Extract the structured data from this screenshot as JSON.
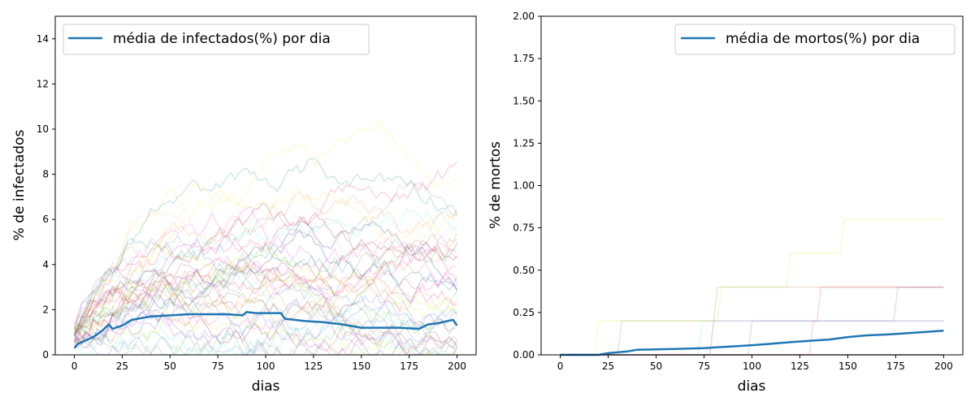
{
  "chart_data": [
    {
      "type": "line",
      "xlabel": "dias",
      "ylabel": "% de infectados",
      "xlim": [
        -10,
        210
      ],
      "ylim": [
        0,
        15
      ],
      "xticks": [
        0,
        25,
        50,
        75,
        100,
        125,
        150,
        175,
        200
      ],
      "xtick_labels": [
        "0",
        "25",
        "50",
        "75",
        "100",
        "125",
        "150",
        "175",
        "200"
      ],
      "yticks": [
        0,
        2,
        4,
        6,
        8,
        10,
        12,
        14
      ],
      "ytick_labels": [
        "0",
        "2",
        "4",
        "6",
        "8",
        "10",
        "12",
        "14"
      ],
      "grid": false,
      "legend_position": "top-left",
      "series": [
        {
          "name": "média de infectados(%) por dia",
          "color": "#1f77b4",
          "x": [
            0,
            2,
            5,
            10,
            15,
            18,
            20,
            25,
            30,
            40,
            50,
            60,
            70,
            80,
            88,
            90,
            95,
            100,
            108,
            110,
            120,
            130,
            140,
            150,
            160,
            170,
            180,
            185,
            190,
            195,
            198,
            200
          ],
          "y": [
            0.3,
            0.5,
            0.6,
            0.8,
            1.1,
            1.35,
            1.15,
            1.3,
            1.55,
            1.7,
            1.75,
            1.8,
            1.8,
            1.8,
            1.75,
            1.9,
            1.85,
            1.85,
            1.85,
            1.6,
            1.5,
            1.45,
            1.35,
            1.2,
            1.2,
            1.2,
            1.15,
            1.35,
            1.4,
            1.5,
            1.55,
            1.3
          ]
        }
      ]
    },
    {
      "type": "line",
      "xlabel": "dias",
      "ylabel": "% de mortos",
      "xlim": [
        -10,
        210
      ],
      "ylim": [
        0,
        2.0
      ],
      "xticks": [
        0,
        25,
        50,
        75,
        100,
        125,
        150,
        175,
        200
      ],
      "xtick_labels": [
        "0",
        "25",
        "50",
        "75",
        "100",
        "125",
        "150",
        "175",
        "200"
      ],
      "yticks": [
        0,
        0.25,
        0.5,
        0.75,
        1.0,
        1.25,
        1.5,
        1.75,
        2.0
      ],
      "ytick_labels": [
        "0.00",
        "0.25",
        "0.50",
        "0.75",
        "1.00",
        "1.25",
        "1.50",
        "1.75",
        "2.00"
      ],
      "grid": false,
      "legend_position": "top-right",
      "series": [
        {
          "name": "média de mortos(%) por dia",
          "color": "#1f77b4",
          "x": [
            0,
            20,
            25,
            30,
            35,
            40,
            50,
            60,
            75,
            90,
            100,
            110,
            120,
            130,
            140,
            150,
            160,
            170,
            180,
            190,
            200
          ],
          "y": [
            0,
            0,
            0.01,
            0.015,
            0.02,
            0.03,
            0.032,
            0.035,
            0.04,
            0.05,
            0.057,
            0.065,
            0.075,
            0.083,
            0.09,
            0.105,
            0.115,
            0.12,
            0.127,
            0.135,
            0.143
          ]
        }
      ]
    }
  ]
}
